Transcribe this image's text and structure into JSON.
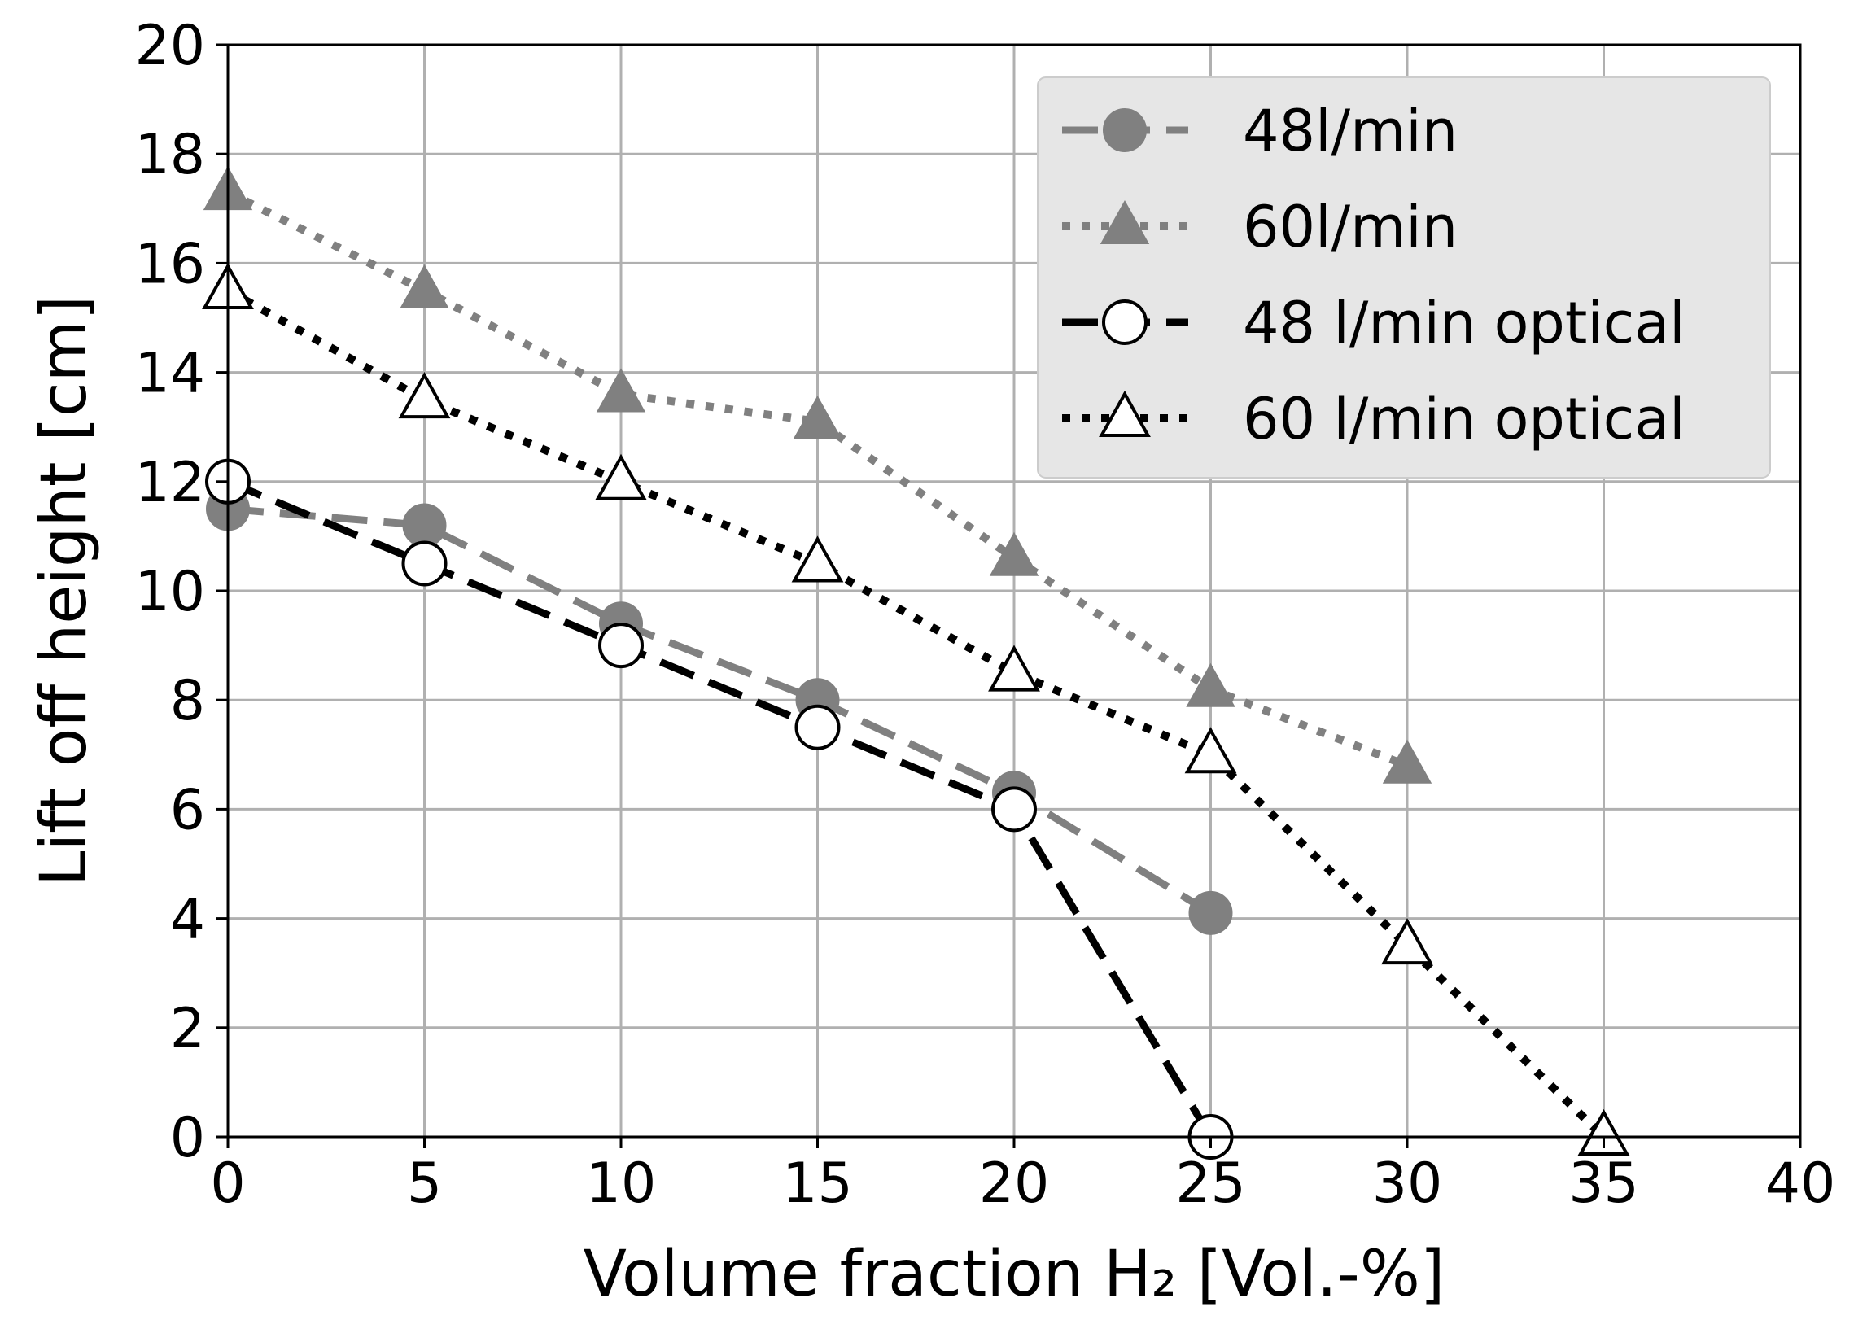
{
  "chart_data": {
    "type": "line",
    "xlabel": "Volume fraction H₂ [Vol.-%]",
    "ylabel": "Lift off height [cm]",
    "xlim": [
      0,
      40
    ],
    "ylim": [
      0,
      20
    ],
    "xticks": [
      "0",
      "5",
      "10",
      "15",
      "20",
      "25",
      "30",
      "35",
      "40"
    ],
    "yticks": [
      "0",
      "2",
      "4",
      "6",
      "8",
      "10",
      "12",
      "14",
      "16",
      "18",
      "20"
    ],
    "grid": true,
    "legend_position": "top-right",
    "series": [
      {
        "name": "48l/min",
        "color": "#808080",
        "marker": "filled-circle",
        "linestyle": "dashed",
        "x": [
          0,
          5,
          10,
          15,
          20,
          25
        ],
        "y": [
          11.5,
          11.2,
          9.4,
          8.0,
          6.3,
          4.1
        ]
      },
      {
        "name": "60l/min",
        "color": "#808080",
        "marker": "filled-triangle",
        "linestyle": "dotted",
        "x": [
          0,
          5,
          10,
          15,
          20,
          25,
          30
        ],
        "y": [
          17.3,
          15.5,
          13.6,
          13.1,
          10.6,
          8.2,
          6.8
        ]
      },
      {
        "name": "48 l/min optical",
        "color": "#000000",
        "marker": "open-circle",
        "linestyle": "dashed",
        "x": [
          0,
          5,
          10,
          15,
          20,
          25
        ],
        "y": [
          12.0,
          10.5,
          9.0,
          7.5,
          6.0,
          0.0
        ]
      },
      {
        "name": "60 l/min optical",
        "color": "#000000",
        "marker": "open-triangle",
        "linestyle": "dotted",
        "x": [
          0,
          5,
          10,
          15,
          20,
          25,
          30,
          35
        ],
        "y": [
          15.5,
          13.5,
          12.0,
          10.5,
          8.5,
          7.0,
          3.5,
          0.0
        ]
      }
    ]
  }
}
